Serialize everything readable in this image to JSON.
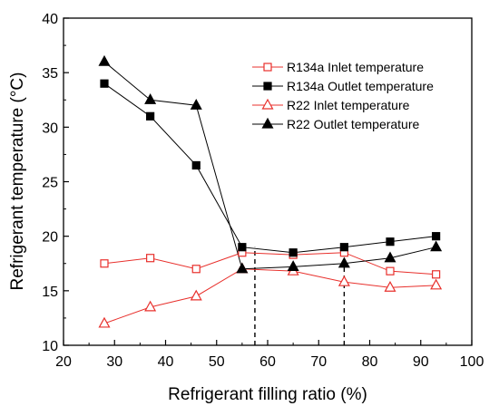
{
  "chart_data": {
    "type": "line",
    "xlabel": "Refrigerant filling ratio (%)",
    "ylabel": "Refrigerant temperature (°C)",
    "xlim": [
      20,
      100
    ],
    "ylim": [
      10,
      40
    ],
    "xticks": [
      20,
      30,
      40,
      50,
      60,
      70,
      80,
      90,
      100
    ],
    "yticks": [
      10,
      15,
      20,
      25,
      30,
      35,
      40
    ],
    "x_tick_labels": [
      "20",
      "30",
      "40",
      "50",
      "60",
      "70",
      "80",
      "90",
      "100"
    ],
    "y_tick_labels": [
      "10",
      "15",
      "20",
      "25",
      "30",
      "35",
      "40"
    ],
    "grid": false,
    "legend_position": "top-right",
    "series": [
      {
        "name": "R134a Inlet temperature",
        "marker": "square-open",
        "color": "#e8302c",
        "x": [
          28,
          37,
          46,
          55,
          65,
          75,
          84,
          93
        ],
        "y": [
          17.5,
          18.0,
          17.0,
          18.5,
          18.3,
          18.5,
          16.8,
          16.5
        ]
      },
      {
        "name": "R134a Outlet temperature",
        "marker": "square-filled",
        "color": "#000000",
        "x": [
          28,
          37,
          46,
          55,
          65,
          75,
          84,
          93
        ],
        "y": [
          34.0,
          31.0,
          26.5,
          19.0,
          18.5,
          19.0,
          19.5,
          20.0
        ]
      },
      {
        "name": "R22 Inlet temperature",
        "marker": "triangle-open",
        "color": "#e8302c",
        "x": [
          28,
          37,
          46,
          55,
          65,
          75,
          84,
          93
        ],
        "y": [
          12.0,
          13.5,
          14.5,
          17.0,
          16.8,
          15.8,
          15.3,
          15.5
        ]
      },
      {
        "name": "R22 Outlet temperature",
        "marker": "triangle-filled",
        "color": "#000000",
        "x": [
          28,
          37,
          46,
          55,
          65,
          75,
          84,
          93
        ],
        "y": [
          36.0,
          32.5,
          32.0,
          17.0,
          17.2,
          17.5,
          18.0,
          19.0
        ]
      }
    ],
    "reference_lines": [
      {
        "x": 57.5,
        "y_from": 10,
        "y_to": 19.0,
        "style": "dashed"
      },
      {
        "x": 75.0,
        "y_from": 10,
        "y_to": 18.5,
        "style": "dashed"
      }
    ]
  }
}
